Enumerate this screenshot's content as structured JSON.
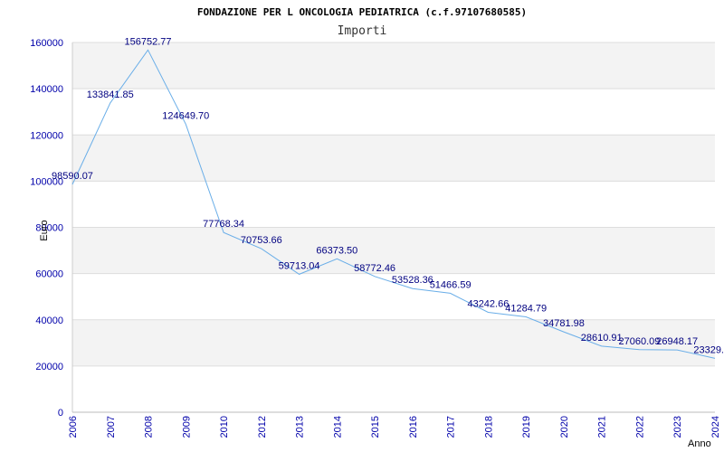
{
  "chart_data": {
    "type": "line",
    "title": "FONDAZIONE PER L ONCOLOGIA PEDIATRICA (c.f.97107680585)",
    "subtitle": "Importi",
    "xlabel": "Anno",
    "ylabel": "Euro",
    "ylim": [
      0,
      160000
    ],
    "yticks": [
      "0",
      "20000",
      "40000",
      "60000",
      "80000",
      "100000",
      "120000",
      "140000",
      "160000"
    ],
    "grid": "horizontal bands",
    "x": [
      "2006",
      "2007",
      "2008",
      "2009",
      "2010",
      "2012",
      "2013",
      "2014",
      "2015",
      "2016",
      "2017",
      "2018",
      "2019",
      "2020",
      "2021",
      "2022",
      "2023",
      "2024"
    ],
    "series": [
      {
        "values": [
          98590.07,
          133841.85,
          156752.77,
          124649.7,
          77768.34,
          70753.66,
          59713.04,
          66373.5,
          58772.46,
          53528.36,
          51466.59,
          43242.66,
          41284.79,
          34781.98,
          28610.91,
          27060.09,
          26948.17,
          23329.0
        ],
        "labels": [
          "98590.07",
          "133841.85",
          "156752.77",
          "124649.70",
          "77768.34",
          "70753.66",
          "59713.04",
          "66373.50",
          "58772.46",
          "53528.36",
          "51466.59",
          "43242.66",
          "41284.79",
          "34781.98",
          "28610.91",
          "27060.09",
          "26948.17",
          "23329."
        ]
      }
    ],
    "colors": {
      "line": "#6aaee8",
      "band": "#f3f3f3",
      "grid": "#dddddd",
      "tick_text": "#0000aa",
      "label_text": "#000080"
    }
  }
}
